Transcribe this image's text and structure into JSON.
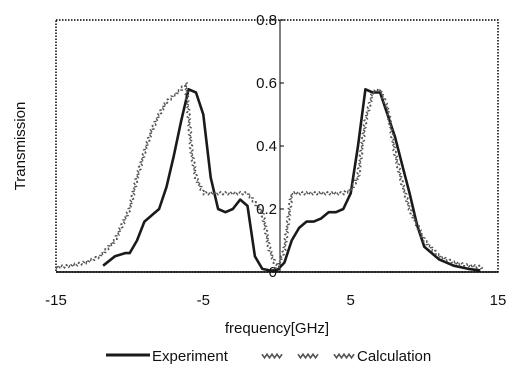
{
  "chart_data": {
    "type": "line",
    "title": "",
    "xlabel": "frequency[GHz]",
    "ylabel": "Transmission",
    "xlim": [
      -15,
      15
    ],
    "ylim": [
      0,
      0.8
    ],
    "x_ticks": [
      "-15",
      "-5",
      "5",
      "15"
    ],
    "y_ticks": [
      "0",
      "0.2",
      "0.4",
      "0.6",
      "0.8"
    ],
    "grid": false,
    "legend_position": "bottom",
    "series": [
      {
        "name": "Experiment",
        "style": "solid",
        "color": "#1a1a1a",
        "x": [
          -11.8,
          -11,
          -10.3,
          -10,
          -9.5,
          -9,
          -8.5,
          -8,
          -7.5,
          -7,
          -6.5,
          -6,
          -5.5,
          -5,
          -4.5,
          -4,
          -3.5,
          -3,
          -2.5,
          -2,
          -1.5,
          -1,
          -0.5,
          0,
          0.5,
          1,
          1.5,
          2,
          2.5,
          3,
          3.5,
          4,
          4.5,
          5,
          5.5,
          6,
          6.5,
          7,
          7.5,
          8,
          8.5,
          9,
          9.5,
          10,
          11,
          12,
          13,
          13.8
        ],
        "y": [
          0.02,
          0.05,
          0.06,
          0.06,
          0.1,
          0.16,
          0.18,
          0.2,
          0.27,
          0.37,
          0.48,
          0.58,
          0.57,
          0.5,
          0.3,
          0.2,
          0.19,
          0.2,
          0.23,
          0.21,
          0.05,
          0.01,
          0.005,
          0.005,
          0.03,
          0.1,
          0.14,
          0.16,
          0.16,
          0.17,
          0.19,
          0.19,
          0.2,
          0.25,
          0.4,
          0.58,
          0.57,
          0.57,
          0.5,
          0.43,
          0.34,
          0.25,
          0.15,
          0.08,
          0.04,
          0.02,
          0.01,
          0.005
        ]
      },
      {
        "name": "Calculation",
        "style": "wavy",
        "color": "#555555",
        "x": [
          -15,
          -14,
          -13,
          -12,
          -11,
          -10.5,
          -10,
          -9.5,
          -9,
          -8.5,
          -8,
          -7.5,
          -7,
          -6.5,
          -6.2,
          -6,
          -5.8,
          -5.5,
          -5,
          -4.5,
          -4,
          -3.5,
          -3,
          -2.5,
          -2,
          -1.5,
          -1,
          -0.5,
          0,
          0.5,
          1,
          2,
          3,
          4,
          4.5,
          5,
          5.5,
          6,
          6.5,
          7,
          7.5,
          8,
          8.5,
          9,
          9.5,
          10,
          11,
          12,
          13,
          14
        ],
        "y": [
          0.015,
          0.02,
          0.03,
          0.05,
          0.1,
          0.15,
          0.2,
          0.3,
          0.38,
          0.45,
          0.5,
          0.54,
          0.56,
          0.58,
          0.6,
          0.5,
          0.38,
          0.3,
          0.25,
          0.25,
          0.25,
          0.25,
          0.25,
          0.25,
          0.25,
          0.22,
          0.19,
          0.07,
          0.01,
          0.07,
          0.25,
          0.25,
          0.25,
          0.25,
          0.25,
          0.26,
          0.3,
          0.48,
          0.57,
          0.58,
          0.52,
          0.38,
          0.28,
          0.2,
          0.15,
          0.1,
          0.05,
          0.03,
          0.02,
          0.015
        ]
      }
    ]
  }
}
